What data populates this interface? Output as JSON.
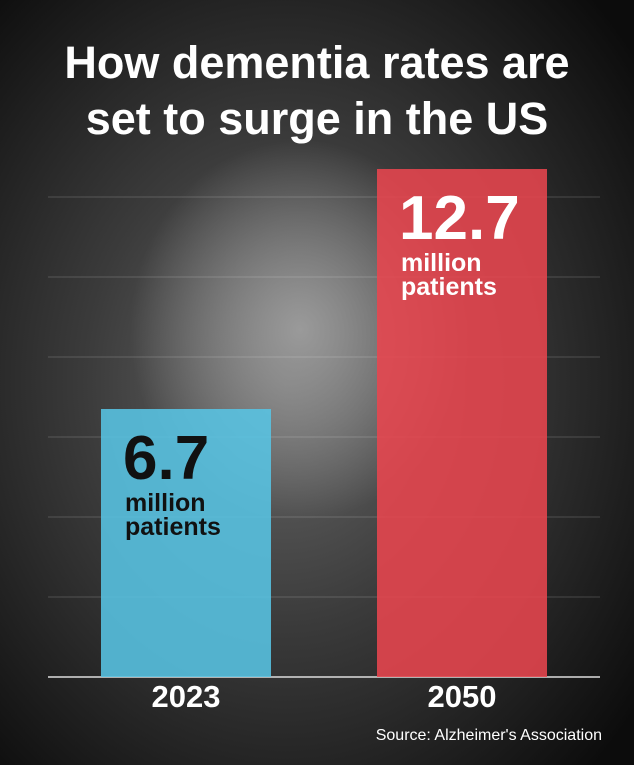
{
  "chart_data": {
    "type": "bar",
    "title": [
      "How dementia rates are",
      "set to surge in the US"
    ],
    "categories": [
      "2023",
      "2050"
    ],
    "values": [
      6.7,
      12.7
    ],
    "colors": [
      "#58c4e4",
      "#e8464f"
    ],
    "value_unit": [
      "million",
      "patients"
    ],
    "ylim": [
      0,
      13
    ],
    "yticks": [
      0,
      2,
      4,
      6,
      8,
      10,
      12
    ],
    "grid": true,
    "source": "Source: Alzheimer's Association"
  }
}
